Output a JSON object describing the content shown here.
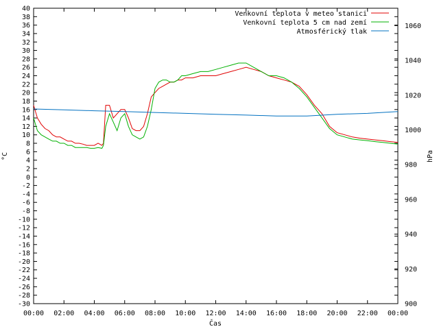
{
  "chart_data": {
    "type": "line",
    "xlabel": "Čas",
    "ylabel": "°C",
    "y2label": "hPa",
    "xlim": [
      0,
      24
    ],
    "ylim": [
      -30,
      40
    ],
    "y2lim": [
      900,
      1070
    ],
    "x_ticks": [
      "00:00",
      "02:00",
      "04:00",
      "06:00",
      "08:00",
      "10:00",
      "12:00",
      "14:00",
      "16:00",
      "18:00",
      "20:00",
      "22:00",
      "00:00"
    ],
    "y_ticks": [
      -30,
      -28,
      -26,
      -24,
      -22,
      -20,
      -18,
      -16,
      -14,
      -12,
      -10,
      -8,
      -6,
      -4,
      -2,
      0,
      2,
      4,
      6,
      8,
      10,
      12,
      14,
      16,
      18,
      20,
      22,
      24,
      26,
      28,
      30,
      32,
      34,
      36,
      38,
      40
    ],
    "y2_ticks": [
      900,
      920,
      940,
      960,
      980,
      1000,
      1020,
      1040,
      1060
    ],
    "grid": false,
    "legend_position": "top-right",
    "series": [
      {
        "name": "Venkovní teplota v meteo stanici",
        "color": "#e00000",
        "axis": "y",
        "x": [
          0,
          0.25,
          0.5,
          0.75,
          1,
          1.25,
          1.5,
          1.75,
          2,
          2.25,
          2.5,
          2.75,
          3,
          3.25,
          3.5,
          3.75,
          4,
          4.25,
          4.5,
          4.6,
          4.75,
          5,
          5.25,
          5.5,
          5.75,
          6,
          6.25,
          6.5,
          6.75,
          7,
          7.25,
          7.5,
          7.75,
          8,
          8.25,
          8.5,
          8.75,
          9,
          9.25,
          9.5,
          9.75,
          10,
          10.5,
          11,
          11.5,
          12,
          12.5,
          13,
          13.5,
          14,
          14.5,
          15,
          15.5,
          16,
          16.5,
          17,
          17.5,
          18,
          18.5,
          19,
          19.5,
          20,
          20.5,
          21,
          21.5,
          22,
          22.5,
          23,
          23.5,
          24
        ],
        "y": [
          17,
          14,
          12.5,
          11.5,
          11,
          10,
          9.5,
          9.5,
          9,
          8.5,
          8.5,
          8,
          8,
          7.8,
          7.5,
          7.5,
          7.5,
          8,
          7.5,
          8,
          17,
          17,
          14,
          15,
          16,
          16,
          14,
          11.5,
          11,
          11,
          12,
          15,
          19,
          20,
          21,
          21.5,
          22,
          22.5,
          22.5,
          23,
          23,
          23.5,
          23.5,
          24,
          24,
          24,
          24.5,
          25,
          25.5,
          26,
          25.5,
          25,
          24,
          23.5,
          23,
          22.5,
          21.5,
          19.5,
          17,
          15,
          12,
          10.5,
          10,
          9.5,
          9.2,
          9,
          8.8,
          8.6,
          8.4,
          8.2
        ]
      },
      {
        "name": "Venkovní teplota 5 cm nad zemí",
        "color": "#00b000",
        "axis": "y",
        "x": [
          0,
          0.25,
          0.5,
          0.75,
          1,
          1.25,
          1.5,
          1.75,
          2,
          2.25,
          2.5,
          2.75,
          3,
          3.25,
          3.5,
          3.75,
          4,
          4.25,
          4.5,
          4.6,
          4.75,
          5,
          5.25,
          5.5,
          5.75,
          6,
          6.25,
          6.5,
          6.75,
          7,
          7.25,
          7.5,
          7.75,
          8,
          8.25,
          8.5,
          8.75,
          9,
          9.25,
          9.5,
          9.75,
          10,
          10.5,
          11,
          11.5,
          12,
          12.5,
          13,
          13.5,
          14,
          14.5,
          15,
          15.5,
          16,
          16.5,
          17,
          17.5,
          18,
          18.5,
          19,
          19.5,
          20,
          20.5,
          21,
          21.5,
          22,
          22.5,
          23,
          23.5,
          24
        ],
        "y": [
          14,
          11,
          10,
          9.5,
          9,
          8.5,
          8.5,
          8,
          8,
          7.5,
          7.5,
          7,
          7,
          7,
          7,
          6.8,
          6.8,
          7,
          6.8,
          7.5,
          12,
          15,
          13,
          11,
          14,
          15,
          12,
          10,
          9.5,
          9,
          9.5,
          12,
          16,
          21,
          22.5,
          23,
          23,
          22.5,
          22.5,
          23,
          24,
          24,
          24.5,
          25,
          25,
          25.5,
          26,
          26.5,
          27,
          27,
          26,
          25,
          24,
          24,
          23.5,
          22.5,
          21,
          19,
          16.5,
          14,
          11.5,
          10,
          9.5,
          9,
          8.8,
          8.6,
          8.4,
          8.2,
          8,
          7.8
        ]
      },
      {
        "name": "Atmosférický tlak",
        "color": "#0070c0",
        "axis": "y2",
        "x": [
          0,
          2,
          4,
          6,
          8,
          10,
          12,
          14,
          16,
          18,
          20,
          22,
          24
        ],
        "y": [
          1012,
          1011.5,
          1011,
          1010.5,
          1010,
          1009.5,
          1009,
          1008.5,
          1008,
          1008,
          1009,
          1009.5,
          1010.5
        ]
      }
    ]
  }
}
